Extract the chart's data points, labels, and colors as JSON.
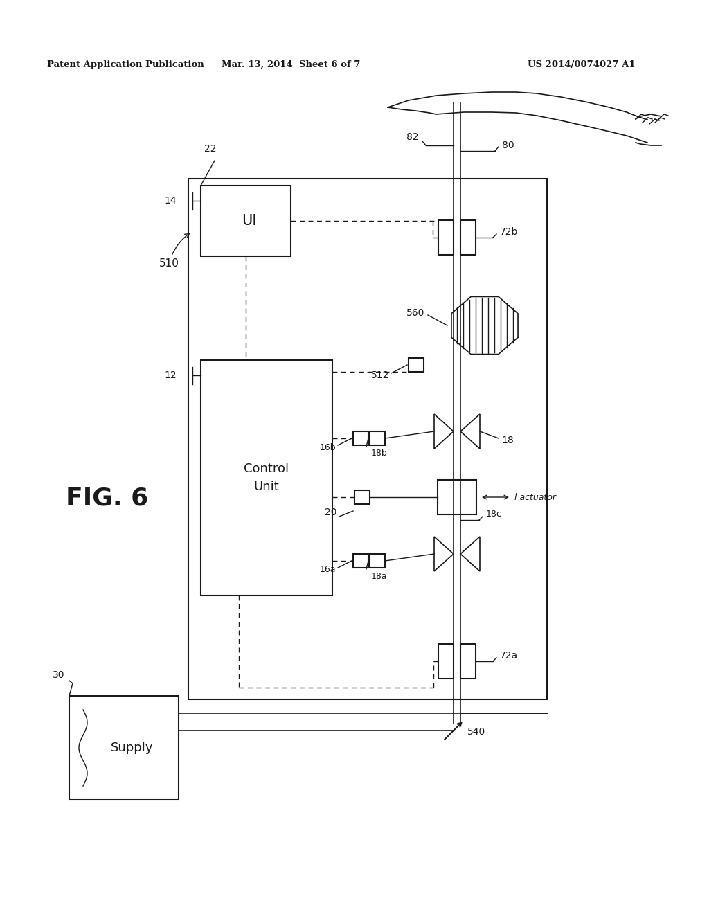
{
  "bg_color": "#ffffff",
  "header_left": "Patent Application Publication",
  "header_mid": "Mar. 13, 2014  Sheet 6 of 7",
  "header_right": "US 2014/0074027 A1",
  "fig_label": "FIG. 6"
}
